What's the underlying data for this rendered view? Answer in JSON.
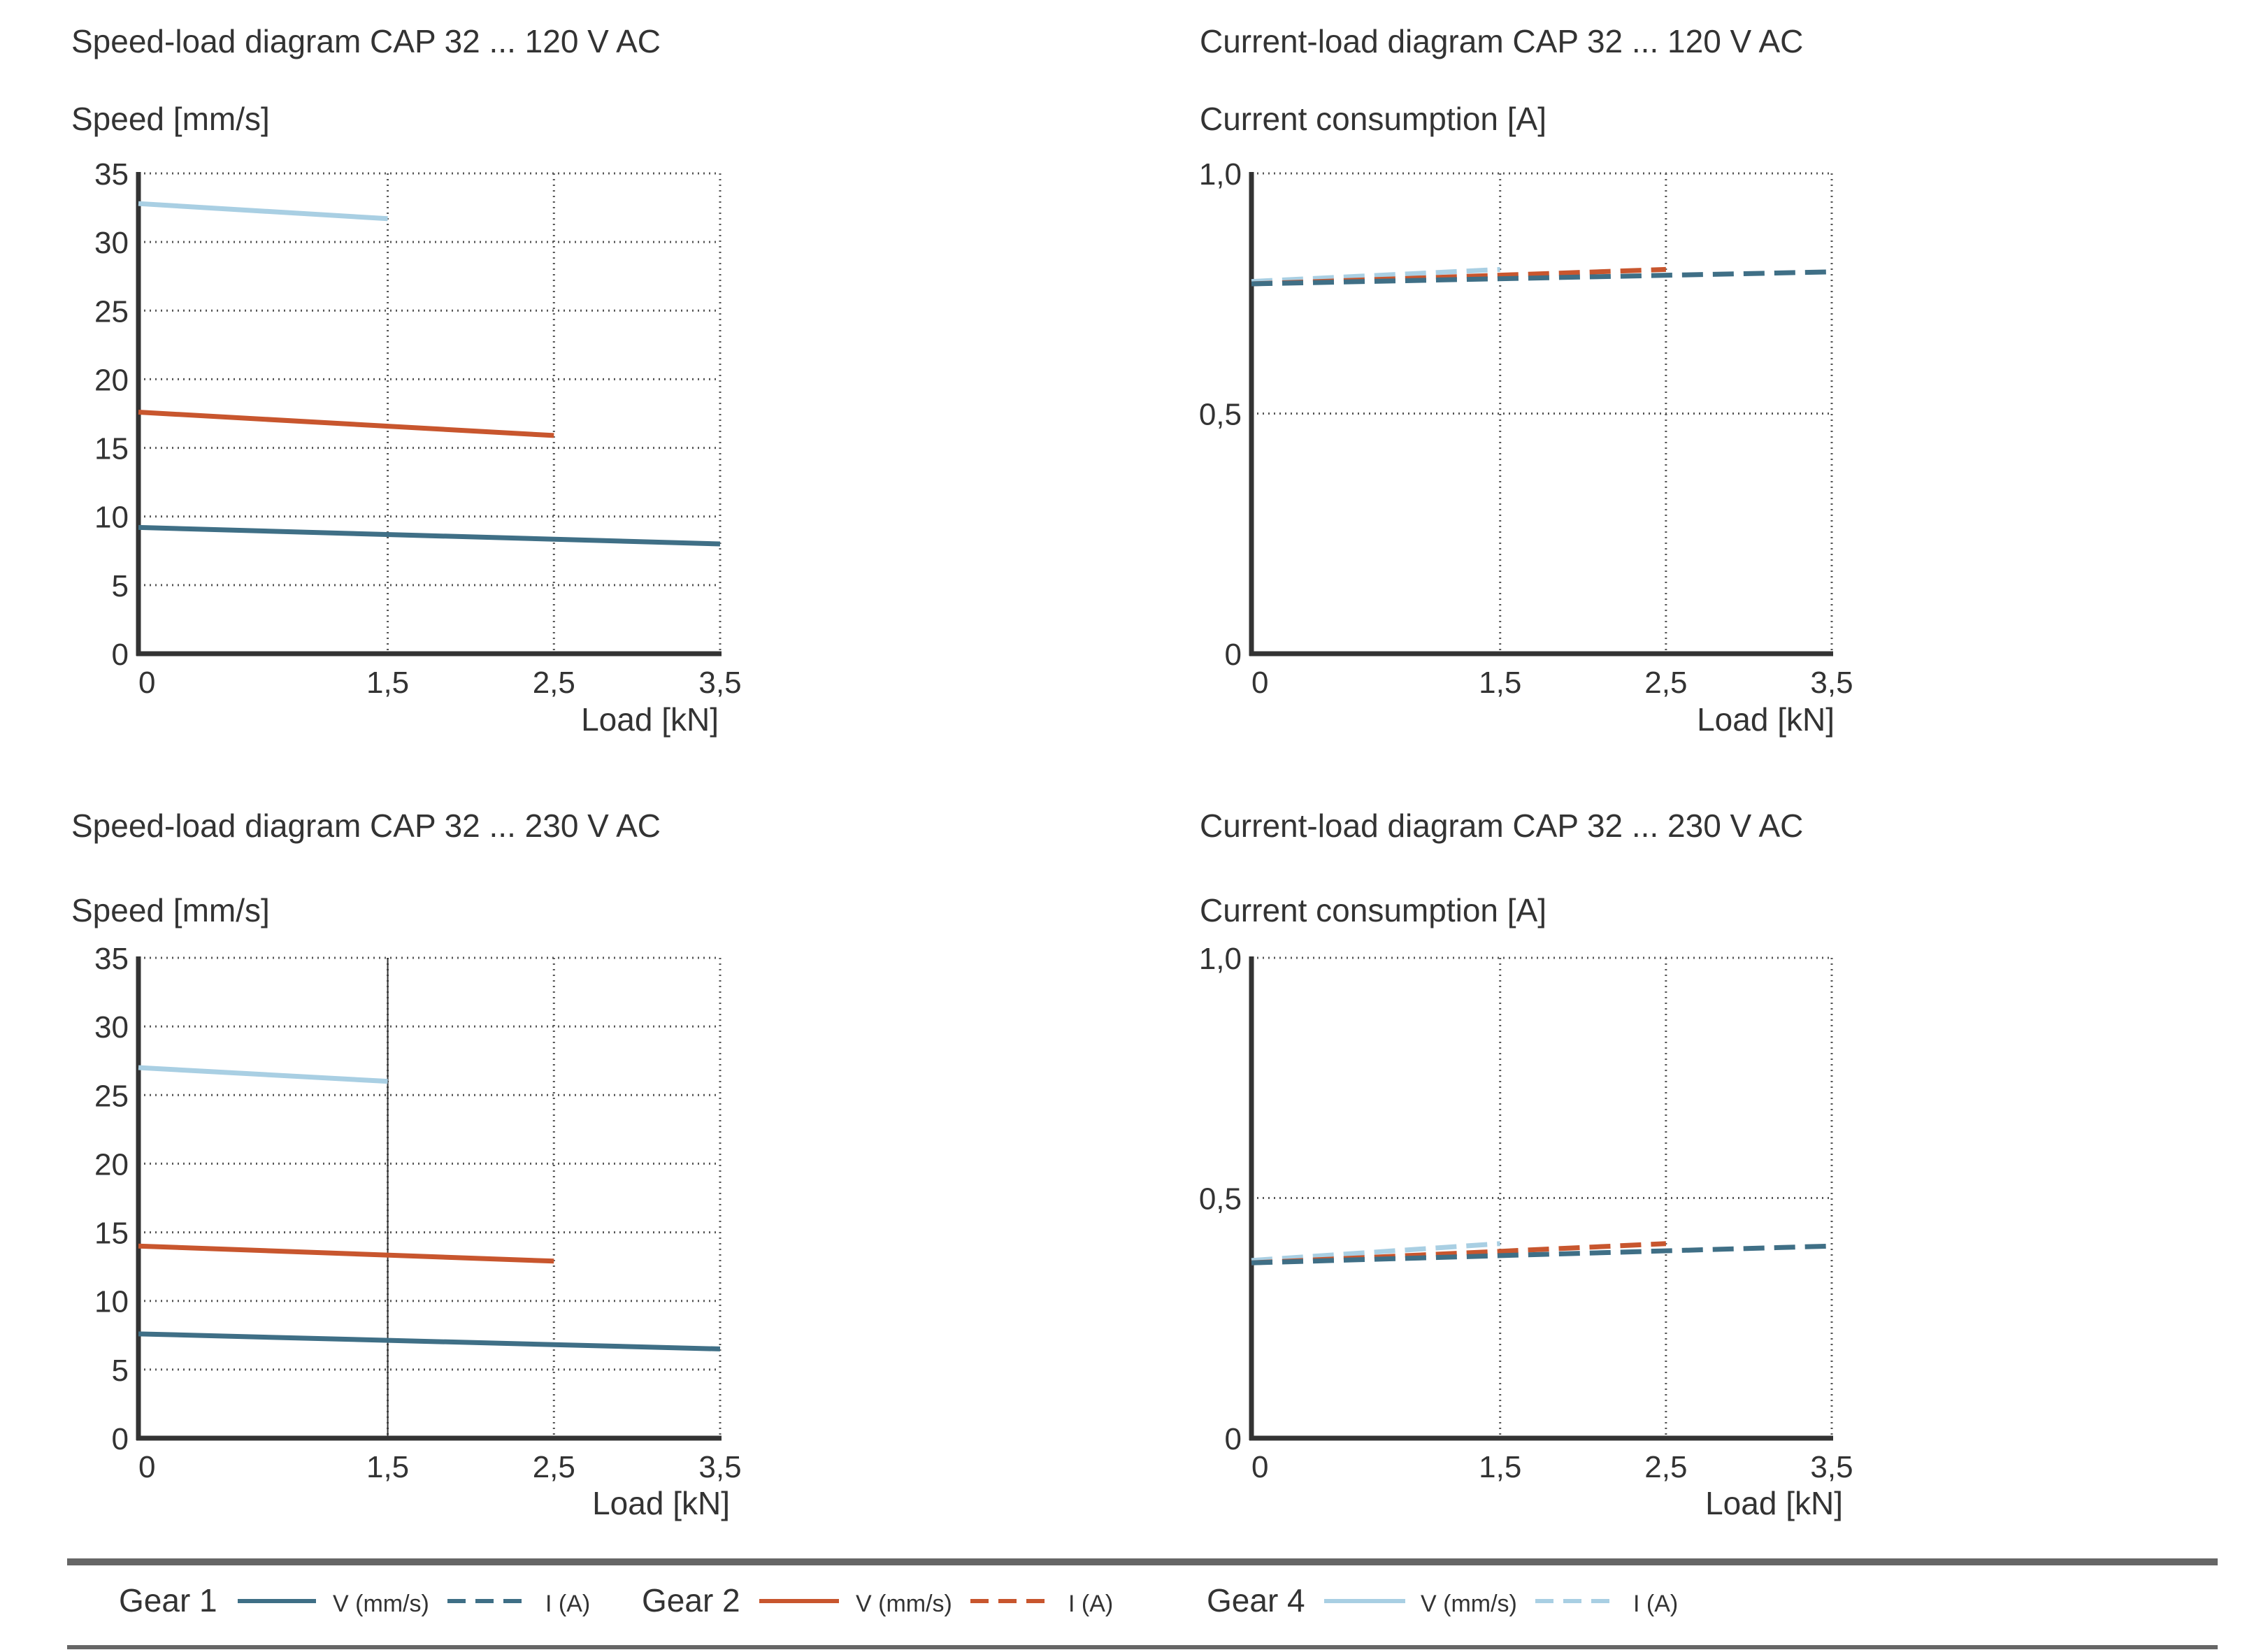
{
  "colors": {
    "gear1": "#3f6f86",
    "gear2": "#c8562e",
    "gear4": "#a9cfe3",
    "axis": "#333333",
    "grid": "#555555",
    "rule": "#666666"
  },
  "chart_data": [
    {
      "type": "line",
      "title": "Speed-load diagram  CAP 32 ... 120 V AC",
      "ylabel": "Speed [mm/s]",
      "xlabel": "Load [kN]",
      "x_ticks": [
        0,
        1.5,
        2.5,
        3.5
      ],
      "x_tick_labels": [
        "0",
        "1,5",
        "2,5",
        "3,5"
      ],
      "xlim": [
        0,
        3.5
      ],
      "y_ticks": [
        0,
        5,
        10,
        15,
        20,
        25,
        30,
        35
      ],
      "y_tick_labels": [
        "0",
        "5",
        "10",
        "15",
        "20",
        "25",
        "30",
        "35"
      ],
      "ylim": [
        0,
        35
      ],
      "grid": true,
      "series": [
        {
          "name": "Gear 1 V (mm/s)",
          "gear": "gear1",
          "dashed": false,
          "x": [
            0,
            3.5
          ],
          "y": [
            9.2,
            8.0
          ]
        },
        {
          "name": "Gear 2 V (mm/s)",
          "gear": "gear2",
          "dashed": false,
          "x": [
            0,
            2.5
          ],
          "y": [
            17.6,
            15.9
          ]
        },
        {
          "name": "Gear 4 V (mm/s)",
          "gear": "gear4",
          "dashed": false,
          "x": [
            0,
            1.5
          ],
          "y": [
            32.8,
            31.7
          ]
        }
      ]
    },
    {
      "type": "line",
      "title": "Current-load diagram  CAP 32 ... 120 V AC",
      "ylabel": "Current consumption [A]",
      "xlabel": "Load [kN]",
      "x_ticks": [
        0,
        1.5,
        2.5,
        3.5
      ],
      "x_tick_labels": [
        "0",
        "1,5",
        "2,5",
        "3,5"
      ],
      "xlim": [
        0,
        3.5
      ],
      "y_ticks": [
        0,
        0.5,
        1.0
      ],
      "y_tick_labels": [
        "0",
        "0,5",
        "1,0"
      ],
      "ylim": [
        0,
        1.0
      ],
      "grid": true,
      "series": [
        {
          "name": "Gear 4 I (A)",
          "gear": "gear4",
          "dashed": true,
          "x": [
            0,
            1.5
          ],
          "y": [
            0.775,
            0.8
          ]
        },
        {
          "name": "Gear 2 I (A)",
          "gear": "gear2",
          "dashed": true,
          "x": [
            0,
            2.5
          ],
          "y": [
            0.77,
            0.8
          ]
        },
        {
          "name": "Gear 1 I (A)",
          "gear": "gear1",
          "dashed": true,
          "x": [
            0,
            3.5
          ],
          "y": [
            0.77,
            0.795
          ]
        }
      ]
    },
    {
      "type": "line",
      "title": "Speed-load diagram  CAP 32 ... 230 V AC",
      "ylabel": "Speed [mm/s]",
      "xlabel": "Load [kN]",
      "x_ticks": [
        0,
        1.5,
        2.5,
        3.5
      ],
      "x_tick_labels": [
        "0",
        "1,5",
        "2,5",
        "3,5"
      ],
      "xlim": [
        0,
        3.5
      ],
      "y_ticks": [
        0,
        5,
        10,
        15,
        20,
        25,
        30,
        35
      ],
      "y_tick_labels": [
        "0",
        "5",
        "10",
        "15",
        "20",
        "25",
        "30",
        "35"
      ],
      "ylim": [
        0,
        35
      ],
      "grid": true,
      "solid_vertical_at": 1.5,
      "series": [
        {
          "name": "Gear 1 V (mm/s)",
          "gear": "gear1",
          "dashed": false,
          "x": [
            0,
            3.5
          ],
          "y": [
            7.6,
            6.5
          ]
        },
        {
          "name": "Gear 2 V (mm/s)",
          "gear": "gear2",
          "dashed": false,
          "x": [
            0,
            2.5
          ],
          "y": [
            14.0,
            12.9
          ]
        },
        {
          "name": "Gear 4 V (mm/s)",
          "gear": "gear4",
          "dashed": false,
          "x": [
            0,
            1.5
          ],
          "y": [
            27.0,
            26.0
          ]
        }
      ]
    },
    {
      "type": "line",
      "title": "Current-load diagram  CAP 32 ... 230 V AC",
      "ylabel": "Current consumption [A]",
      "xlabel": "Load [kN]",
      "x_ticks": [
        0,
        1.5,
        2.5,
        3.5
      ],
      "x_tick_labels": [
        "0",
        "1,5",
        "2,5",
        "3,5"
      ],
      "xlim": [
        0,
        3.5
      ],
      "y_ticks": [
        0,
        0.5,
        1.0
      ],
      "y_tick_labels": [
        "0",
        "0,5",
        "1,0"
      ],
      "ylim": [
        0,
        1.0
      ],
      "grid": true,
      "series": [
        {
          "name": "Gear 4 I (A)",
          "gear": "gear4",
          "dashed": true,
          "x": [
            0,
            1.5
          ],
          "y": [
            0.37,
            0.405
          ]
        },
        {
          "name": "Gear 2 I (A)",
          "gear": "gear2",
          "dashed": true,
          "x": [
            0,
            2.5
          ],
          "y": [
            0.365,
            0.405
          ]
        },
        {
          "name": "Gear 1 I (A)",
          "gear": "gear1",
          "dashed": true,
          "x": [
            0,
            3.5
          ],
          "y": [
            0.365,
            0.4
          ]
        }
      ]
    }
  ],
  "legend": {
    "groups": [
      {
        "label": "Gear 1",
        "gear": "gear1",
        "v_label": "V (mm/s)",
        "i_label": "I (A)"
      },
      {
        "label": "Gear 2",
        "gear": "gear2",
        "v_label": "V (mm/s)",
        "i_label": "I (A)"
      },
      {
        "label": "Gear 4",
        "gear": "gear4",
        "v_label": "V (mm/s)",
        "i_label": "I (A)"
      }
    ]
  }
}
